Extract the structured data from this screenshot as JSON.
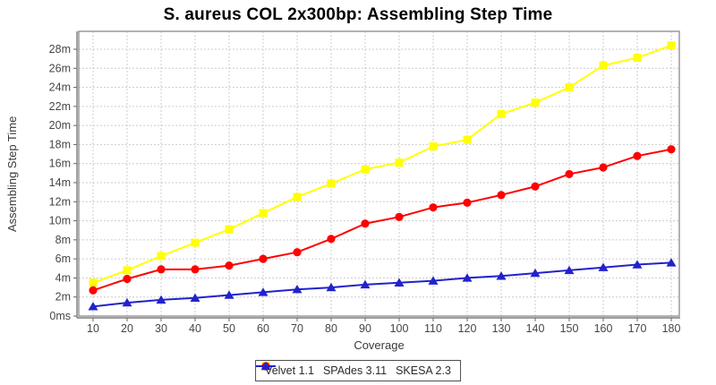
{
  "chart_data": {
    "type": "line",
    "title": "S. aureus COL 2x300bp: Assembling Step Time",
    "xlabel": "Coverage",
    "ylabel": "Assembling Step Time",
    "x": [
      10,
      20,
      30,
      40,
      50,
      60,
      70,
      80,
      90,
      100,
      110,
      120,
      130,
      140,
      150,
      160,
      170,
      180
    ],
    "series": [
      {
        "name": "Velvet 1.1",
        "color": "#FFFF00",
        "marker": "square",
        "values": [
          3.5,
          4.8,
          6.3,
          7.7,
          9.1,
          10.8,
          12.5,
          13.9,
          15.4,
          16.1,
          17.8,
          18.5,
          21.2,
          22.4,
          24.0,
          26.3,
          27.1,
          28.4
        ]
      },
      {
        "name": "SPAdes 3.11",
        "color": "#FF0000",
        "marker": "circle",
        "values": [
          2.7,
          3.9,
          4.9,
          4.9,
          5.3,
          6.0,
          6.7,
          8.1,
          9.7,
          10.4,
          11.4,
          11.9,
          12.7,
          13.6,
          14.9,
          15.6,
          16.8,
          17.5
        ]
      },
      {
        "name": "SKESA 2.3",
        "color": "#2222CC",
        "marker": "triangle",
        "values": [
          1.0,
          1.4,
          1.7,
          1.9,
          2.2,
          2.5,
          2.8,
          3.0,
          3.3,
          3.5,
          3.7,
          4.0,
          4.2,
          4.5,
          4.8,
          5.1,
          5.4,
          5.6
        ]
      }
    ],
    "y_units": "minutes",
    "y_ticks": [
      0,
      2,
      4,
      6,
      8,
      10,
      12,
      14,
      16,
      18,
      20,
      22,
      24,
      26,
      28
    ],
    "y_tick_labels": [
      "0ms",
      "2m",
      "4m",
      "6m",
      "8m",
      "10m",
      "12m",
      "14m",
      "16m",
      "18m",
      "20m",
      "22m",
      "24m",
      "26m",
      "28m"
    ],
    "xlim": [
      10,
      180
    ],
    "ylim": [
      0,
      29.9
    ],
    "grid": true,
    "legend_position": "bottom",
    "colors": {
      "grid": "#CCCCCC",
      "plot_border": "#808080",
      "axis_line": "#666666",
      "tick_label": "#464646",
      "axis_title": "#3a3a3a",
      "title": "#000000",
      "legend_border": "#4D4D4D",
      "background": "#FFFFFF"
    }
  }
}
